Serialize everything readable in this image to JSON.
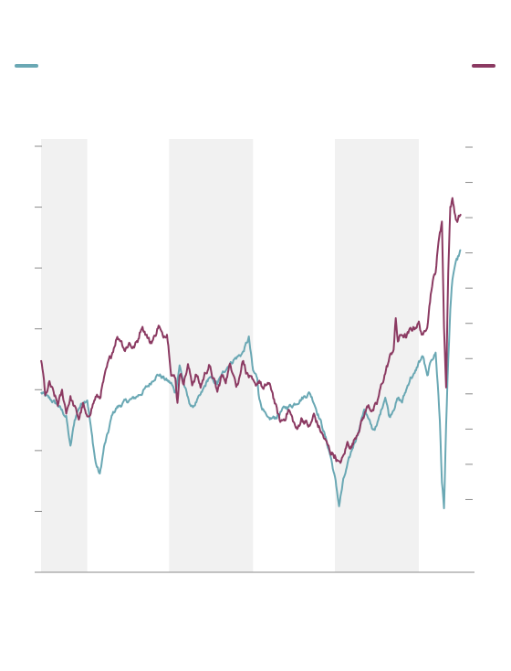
{
  "chart_data": {
    "type": "line",
    "title": "",
    "xlabel": "",
    "ylabel_left": "",
    "ylabel_right": "",
    "legend": {
      "placement": "top",
      "entries": [
        {
          "series": 0,
          "side": "left"
        },
        {
          "series": 1,
          "side": "right"
        }
      ]
    },
    "grid": false,
    "x_range": [
      0,
      100
    ],
    "left_axis": {
      "range": [
        0,
        7
      ],
      "tick_count": 8
    },
    "right_axis": {
      "range": [
        0,
        11
      ],
      "tick_count": 12
    },
    "shaded_periods": [
      [
        0,
        11
      ],
      [
        30.5,
        50.5
      ],
      [
        70,
        90
      ]
    ],
    "series": [
      {
        "color": "#6aa8b4",
        "axis": "left",
        "points": [
          [
            0,
            2.95
          ],
          [
            2,
            2.85
          ],
          [
            4,
            2.75
          ],
          [
            6,
            2.55
          ],
          [
            7,
            2.05
          ],
          [
            8,
            2.5
          ],
          [
            9,
            2.7
          ],
          [
            10,
            2.8
          ],
          [
            11,
            2.85
          ],
          [
            12,
            2.3
          ],
          [
            13,
            1.8
          ],
          [
            14,
            1.6
          ],
          [
            15,
            2.05
          ],
          [
            16,
            2.3
          ],
          [
            17,
            2.6
          ],
          [
            18,
            2.7
          ],
          [
            20,
            2.8
          ],
          [
            22,
            2.85
          ],
          [
            24,
            2.95
          ],
          [
            26,
            3.1
          ],
          [
            27,
            3.2
          ],
          [
            28,
            3.25
          ],
          [
            30,
            3.15
          ],
          [
            31,
            3.1
          ],
          [
            32,
            2.95
          ],
          [
            33,
            3.4
          ],
          [
            34,
            3.1
          ],
          [
            35,
            2.85
          ],
          [
            36,
            2.7
          ],
          [
            38,
            2.9
          ],
          [
            40,
            3.2
          ],
          [
            42,
            3.1
          ],
          [
            44,
            3.35
          ],
          [
            46,
            3.5
          ],
          [
            48,
            3.6
          ],
          [
            49.5,
            3.85
          ],
          [
            50.5,
            3.3
          ],
          [
            51.5,
            3.2
          ],
          [
            52,
            2.85
          ],
          [
            53,
            2.65
          ],
          [
            54,
            2.5
          ],
          [
            56,
            2.55
          ],
          [
            58,
            2.7
          ],
          [
            60,
            2.75
          ],
          [
            62,
            2.85
          ],
          [
            64,
            2.95
          ],
          [
            65,
            2.8
          ],
          [
            66,
            2.6
          ],
          [
            67,
            2.4
          ],
          [
            68,
            2.15
          ],
          [
            69,
            1.9
          ],
          [
            70,
            1.55
          ],
          [
            71,
            1.1
          ],
          [
            72,
            1.5
          ],
          [
            73,
            1.75
          ],
          [
            74,
            2.0
          ],
          [
            75,
            2.2
          ],
          [
            76,
            2.4
          ],
          [
            77,
            2.7
          ],
          [
            78,
            2.5
          ],
          [
            79,
            2.35
          ],
          [
            80,
            2.4
          ],
          [
            81,
            2.65
          ],
          [
            82,
            2.9
          ],
          [
            83,
            2.55
          ],
          [
            84,
            2.7
          ],
          [
            85,
            2.85
          ],
          [
            86,
            2.8
          ],
          [
            87,
            3.0
          ],
          [
            88,
            3.2
          ],
          [
            89,
            3.25
          ],
          [
            90,
            3.45
          ],
          [
            91,
            3.55
          ],
          [
            92,
            3.2
          ],
          [
            93,
            3.5
          ],
          [
            94,
            3.6
          ],
          [
            94.5,
            3.1
          ],
          [
            95,
            2.5
          ],
          [
            95.5,
            1.5
          ],
          [
            96,
            1.05
          ],
          [
            96.5,
            2.4
          ],
          [
            97,
            3.5
          ],
          [
            97.5,
            4.3
          ],
          [
            98,
            4.8
          ],
          [
            98.5,
            5.0
          ],
          [
            99,
            5.1
          ],
          [
            100,
            5.3
          ]
        ]
      },
      {
        "color": "#8b3a62",
        "axis": "right",
        "points": [
          [
            0,
            4.9
          ],
          [
            0.5,
            4.6
          ],
          [
            1,
            3.9
          ],
          [
            2,
            4.3
          ],
          [
            3,
            4.0
          ],
          [
            4,
            3.7
          ],
          [
            5,
            4.05
          ],
          [
            6,
            3.5
          ],
          [
            7,
            3.9
          ],
          [
            8,
            3.6
          ],
          [
            9,
            3.3
          ],
          [
            10,
            3.7
          ],
          [
            11,
            3.25
          ],
          [
            12,
            3.6
          ],
          [
            13,
            3.9
          ],
          [
            14,
            3.9
          ],
          [
            15,
            4.4
          ],
          [
            16,
            4.85
          ],
          [
            17,
            5.2
          ],
          [
            18,
            5.6
          ],
          [
            19,
            5.55
          ],
          [
            20,
            5.25
          ],
          [
            21,
            5.45
          ],
          [
            22,
            5.3
          ],
          [
            23,
            5.5
          ],
          [
            24,
            5.95
          ],
          [
            25,
            5.7
          ],
          [
            26,
            5.45
          ],
          [
            27,
            5.6
          ],
          [
            28,
            5.95
          ],
          [
            29,
            5.6
          ],
          [
            30,
            5.75
          ],
          [
            31,
            4.65
          ],
          [
            32,
            4.4
          ],
          [
            32.5,
            3.75
          ],
          [
            33,
            4.6
          ],
          [
            34,
            4.35
          ],
          [
            35,
            4.8
          ],
          [
            36,
            4.3
          ],
          [
            37,
            4.55
          ],
          [
            38,
            4.2
          ],
          [
            39,
            4.55
          ],
          [
            40,
            4.8
          ],
          [
            41,
            4.45
          ],
          [
            42,
            4.05
          ],
          [
            43,
            4.5
          ],
          [
            44,
            4.4
          ],
          [
            45,
            4.8
          ],
          [
            46,
            4.6
          ],
          [
            46.5,
            4.25
          ],
          [
            47,
            4.3
          ],
          [
            48,
            5.0
          ],
          [
            49,
            4.6
          ],
          [
            50,
            4.4
          ],
          [
            51,
            4.2
          ],
          [
            52,
            4.4
          ],
          [
            53,
            4.1
          ],
          [
            54,
            4.3
          ],
          [
            55,
            4.1
          ],
          [
            56,
            3.6
          ],
          [
            57,
            3.2
          ],
          [
            58,
            3.3
          ],
          [
            59,
            3.55
          ],
          [
            60,
            3.25
          ],
          [
            61,
            2.95
          ],
          [
            62,
            3.3
          ],
          [
            63,
            3.2
          ],
          [
            64,
            3.05
          ],
          [
            65,
            3.4
          ],
          [
            66,
            3.1
          ],
          [
            67,
            2.85
          ],
          [
            68,
            2.6
          ],
          [
            69,
            2.35
          ],
          [
            70,
            2.25
          ],
          [
            71,
            2.0
          ],
          [
            72,
            2.2
          ],
          [
            73,
            2.6
          ],
          [
            74,
            2.5
          ],
          [
            75,
            2.8
          ],
          [
            76,
            3.1
          ],
          [
            77,
            3.4
          ],
          [
            78,
            3.7
          ],
          [
            79,
            3.5
          ],
          [
            80,
            3.7
          ],
          [
            81,
            4.2
          ],
          [
            82,
            4.6
          ],
          [
            83,
            5.0
          ],
          [
            84,
            5.3
          ],
          [
            84.5,
            6.1
          ],
          [
            85,
            5.5
          ],
          [
            86,
            5.7
          ],
          [
            87,
            5.6
          ],
          [
            88,
            5.8
          ],
          [
            89,
            5.9
          ],
          [
            90,
            6.0
          ],
          [
            91,
            5.6
          ],
          [
            92,
            6.0
          ],
          [
            93,
            7.0
          ],
          [
            94,
            7.5
          ],
          [
            95,
            8.6
          ],
          [
            95.5,
            8.9
          ],
          [
            96,
            5.9
          ],
          [
            96.5,
            4.2
          ],
          [
            97,
            7.5
          ],
          [
            97.5,
            9.3
          ],
          [
            98,
            9.5
          ],
          [
            99,
            8.9
          ],
          [
            100,
            9.1
          ]
        ]
      }
    ]
  }
}
